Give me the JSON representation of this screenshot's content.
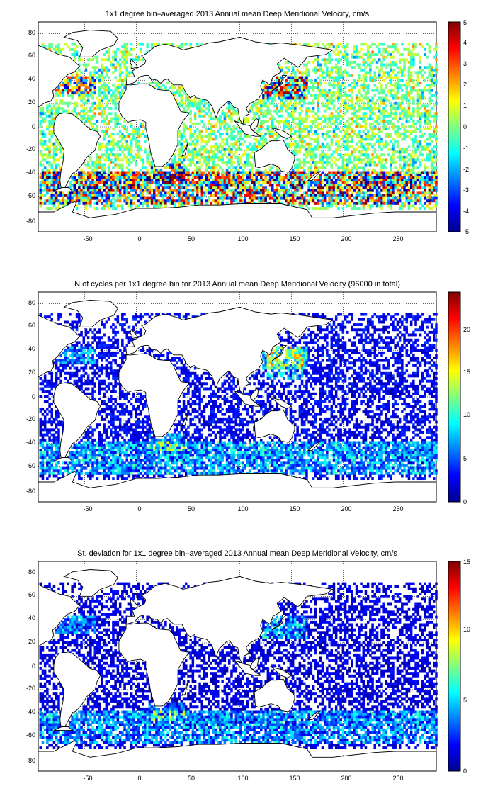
{
  "panels": [
    {
      "title": "1x1 degree bin–averaged 2013 Annual mean Deep Meridional Velocity, cm/s",
      "colorbar": {
        "min": -5,
        "max": 5,
        "ticks": [
          5,
          4,
          3,
          2,
          1,
          0,
          -1,
          -2,
          -3,
          -4,
          -5
        ],
        "colormap": "jet"
      },
      "xticks": [
        "-50",
        "0",
        "50",
        "100",
        "150",
        "200",
        "250"
      ],
      "yticks": [
        "80",
        "60",
        "40",
        "20",
        "0",
        "-20",
        "-40",
        "-60",
        "-80"
      ]
    },
    {
      "title": "N of cycles per 1x1 degree bin for 2013 Annual mean Deep Meridional Velocity (96000 in total)",
      "colorbar": {
        "min": 0,
        "max": 24,
        "ticks": [
          20,
          15,
          10,
          5,
          0
        ],
        "colormap": "jet"
      },
      "xticks": [
        "-50",
        "0",
        "50",
        "100",
        "150",
        "200",
        "250"
      ],
      "yticks": [
        "80",
        "60",
        "40",
        "20",
        "0",
        "-20",
        "-40",
        "-60",
        "-80"
      ]
    },
    {
      "title": "St. deviation for 1x1 degree bin–averaged 2013 Annual mean Deep Meridional Velocity, cm/s",
      "colorbar": {
        "min": 0,
        "max": 15,
        "ticks": [
          15,
          10,
          5,
          0
        ],
        "colormap": "jet"
      },
      "xticks": [
        "-50",
        "0",
        "50",
        "100",
        "150",
        "200",
        "250"
      ],
      "yticks": [
        "80",
        "60",
        "40",
        "20",
        "0",
        "-20",
        "-40",
        "-60",
        "-80"
      ]
    }
  ],
  "chart_data": [
    {
      "type": "heatmap",
      "title": "1x1 degree bin–averaged 2013 Annual mean Deep Meridional Velocity, cm/s",
      "xlim": [
        -95,
        290
      ],
      "ylim": [
        -90,
        90
      ],
      "colorbar_range": [
        -5,
        5
      ],
      "grid": true,
      "colorbar_placement": "right",
      "distribution": "ocean bins; mostly near 0 with strong positive and negative values in the Southern Ocean (40S-65S), Kuroshio and Gulf Stream regions"
    },
    {
      "type": "heatmap",
      "title": "N of cycles per 1x1 degree bin for 2013 Annual mean Deep Meridional Velocity (96000 in total)",
      "xlim": [
        -95,
        290
      ],
      "ylim": [
        -90,
        90
      ],
      "colorbar_range": [
        0,
        24
      ],
      "grid": true,
      "colorbar_placement": "right",
      "distribution": "mostly 1-5 cycles per bin; higher counts (15-24) in the northwest Pacific near Japan"
    },
    {
      "type": "heatmap",
      "title": "St. deviation for 1x1 degree bin–averaged 2013 Annual mean Deep Meridional Velocity, cm/s",
      "xlim": [
        -95,
        290
      ],
      "ylim": [
        -90,
        90
      ],
      "colorbar_range": [
        0,
        15
      ],
      "grid": true,
      "colorbar_placement": "right",
      "distribution": "mostly 0-3 cm/s; elevated (5-12) along the Kuroshio, Gulf Stream, Agulhas and Antarctic Circumpolar Current"
    }
  ]
}
